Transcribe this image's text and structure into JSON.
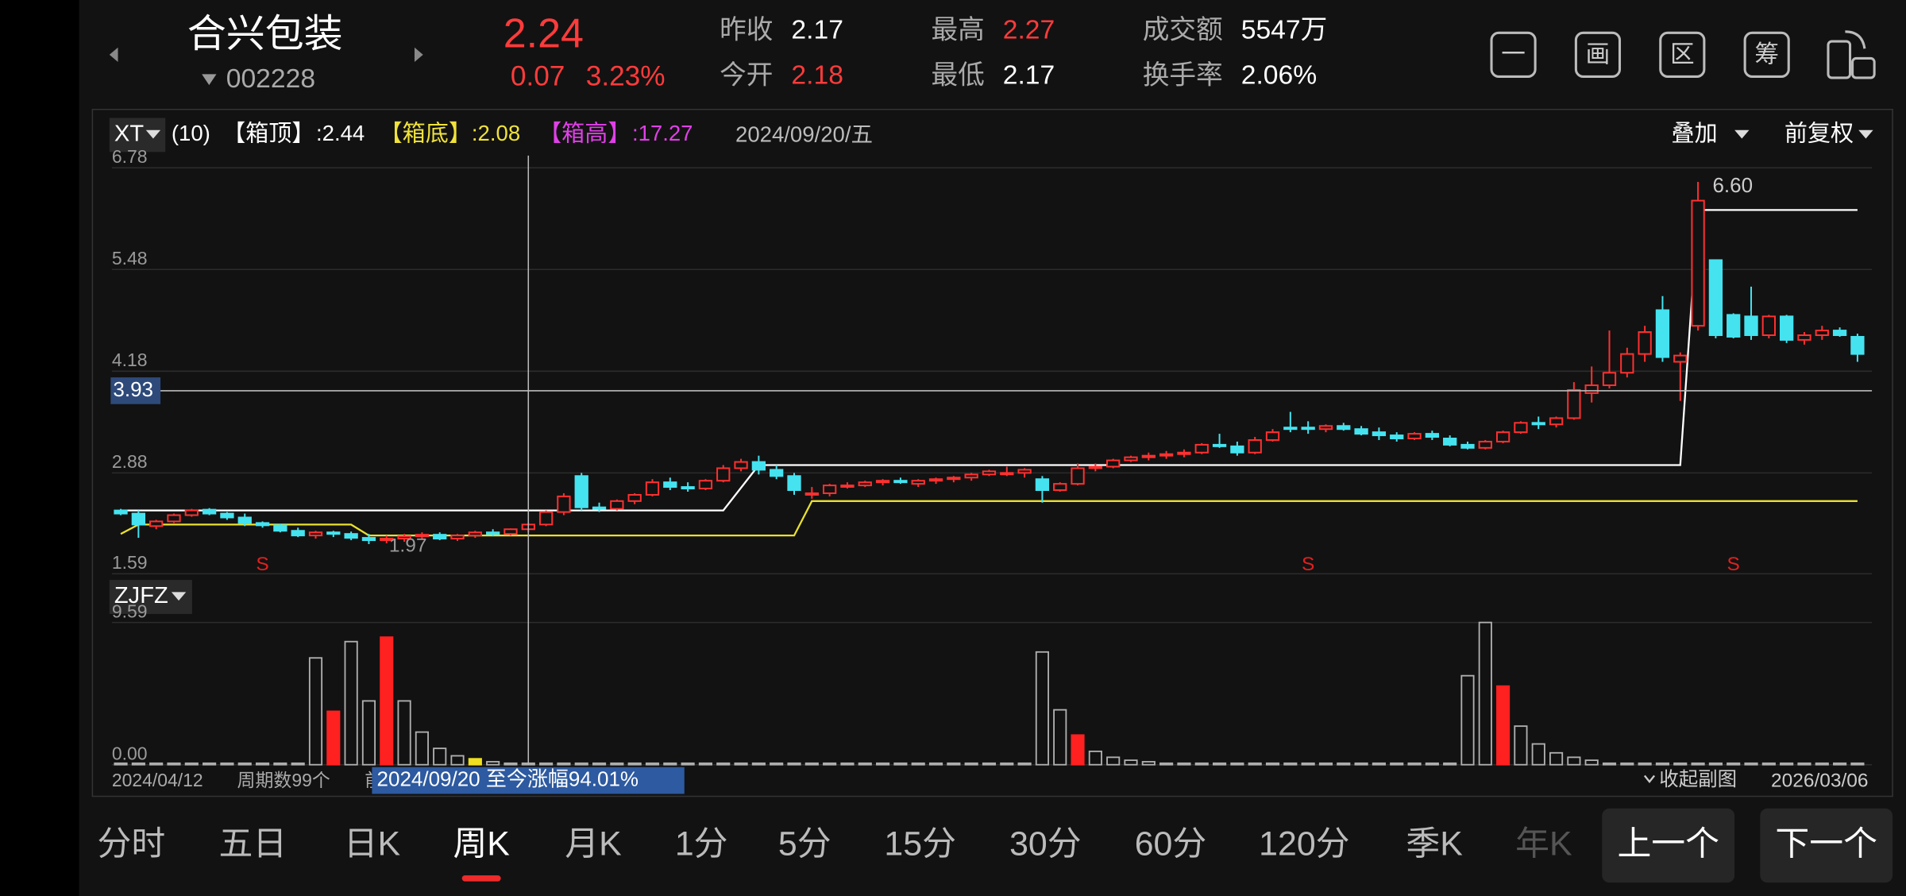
{
  "header": {
    "name": "合兴包装",
    "code": "002228",
    "price": "2.24",
    "change": "0.07",
    "change_pct": "3.23%",
    "stats": [
      {
        "label": "昨收",
        "value": "2.17",
        "color": "#ffffff"
      },
      {
        "label": "今开",
        "value": "2.18",
        "color": "#ff3b3b"
      },
      {
        "label": "最高",
        "value": "2.27",
        "color": "#ff3b3b"
      },
      {
        "label": "最低",
        "value": "2.17",
        "color": "#ffffff"
      },
      {
        "label": "成交额",
        "value": "5547万",
        "color": "#ffffff"
      },
      {
        "label": "换手率",
        "value": "2.06%",
        "color": "#ffffff"
      }
    ],
    "tools": [
      "一",
      "画",
      "区",
      "筹"
    ]
  },
  "indicator": {
    "name": "XT",
    "param": "(10)",
    "items": [
      {
        "label": "【箱顶】",
        "value": ":2.44",
        "color": "#ffffff"
      },
      {
        "label": "【箱底】",
        "value": ":2.08",
        "color": "#f0e23a"
      },
      {
        "label": "【箱高】",
        "value": ":17.27",
        "color": "#e040e8"
      }
    ],
    "date": "2024/09/20/五",
    "overlay": "叠加",
    "adjust": "前复权"
  },
  "chart_data": [
    {
      "type": "candlestick",
      "ylim": [
        1.59,
        6.78
      ],
      "yticks": [
        6.78,
        5.48,
        4.18,
        2.88,
        1.59
      ],
      "up_color": "#ff3030",
      "down_color": "#45e3f0",
      "candles": [
        [
          2.4,
          2.42,
          2.34,
          2.36
        ],
        [
          2.36,
          2.4,
          2.05,
          2.22
        ],
        [
          2.2,
          2.28,
          2.16,
          2.26
        ],
        [
          2.26,
          2.36,
          2.24,
          2.34
        ],
        [
          2.34,
          2.42,
          2.32,
          2.4
        ],
        [
          2.41,
          2.43,
          2.34,
          2.36
        ],
        [
          2.36,
          2.38,
          2.28,
          2.31
        ],
        [
          2.31,
          2.36,
          2.2,
          2.24
        ],
        [
          2.24,
          2.26,
          2.18,
          2.21
        ],
        [
          2.21,
          2.23,
          2.12,
          2.14
        ],
        [
          2.14,
          2.18,
          2.06,
          2.08
        ],
        [
          2.08,
          2.14,
          2.04,
          2.12
        ],
        [
          2.12,
          2.14,
          2.06,
          2.1
        ],
        [
          2.1,
          2.13,
          2.02,
          2.05
        ],
        [
          2.05,
          2.1,
          1.97,
          2.02
        ],
        [
          2.02,
          2.08,
          1.98,
          2.04
        ],
        [
          2.04,
          2.1,
          2.0,
          2.07
        ],
        [
          2.07,
          2.12,
          2.03,
          2.09
        ],
        [
          2.09,
          2.12,
          2.02,
          2.04
        ],
        [
          2.04,
          2.1,
          2.01,
          2.08
        ],
        [
          2.08,
          2.14,
          2.05,
          2.12
        ],
        [
          2.12,
          2.16,
          2.07,
          2.1
        ],
        [
          2.1,
          2.17,
          2.08,
          2.16
        ],
        [
          2.16,
          2.24,
          2.12,
          2.22
        ],
        [
          2.22,
          2.4,
          2.2,
          2.38
        ],
        [
          2.38,
          2.62,
          2.34,
          2.58
        ],
        [
          2.84,
          2.88,
          2.4,
          2.44
        ],
        [
          2.44,
          2.5,
          2.38,
          2.42
        ],
        [
          2.42,
          2.54,
          2.4,
          2.52
        ],
        [
          2.52,
          2.62,
          2.48,
          2.6
        ],
        [
          2.6,
          2.8,
          2.58,
          2.76
        ],
        [
          2.76,
          2.82,
          2.66,
          2.7
        ],
        [
          2.7,
          2.76,
          2.64,
          2.68
        ],
        [
          2.68,
          2.8,
          2.66,
          2.78
        ],
        [
          2.78,
          2.98,
          2.76,
          2.94
        ],
        [
          2.94,
          3.06,
          2.9,
          3.02
        ],
        [
          3.02,
          3.1,
          2.86,
          2.92
        ],
        [
          2.92,
          2.98,
          2.8,
          2.84
        ],
        [
          2.84,
          2.88,
          2.6,
          2.66
        ],
        [
          2.6,
          2.7,
          2.55,
          2.62
        ],
        [
          2.62,
          2.74,
          2.58,
          2.72
        ],
        [
          2.72,
          2.76,
          2.68,
          2.72
        ],
        [
          2.72,
          2.78,
          2.7,
          2.76
        ],
        [
          2.76,
          2.8,
          2.72,
          2.78
        ],
        [
          2.78,
          2.82,
          2.74,
          2.76
        ],
        [
          2.74,
          2.8,
          2.7,
          2.78
        ],
        [
          2.78,
          2.82,
          2.74,
          2.8
        ],
        [
          2.8,
          2.84,
          2.76,
          2.82
        ],
        [
          2.82,
          2.88,
          2.78,
          2.86
        ],
        [
          2.86,
          2.92,
          2.84,
          2.9
        ],
        [
          2.88,
          2.96,
          2.84,
          2.88
        ],
        [
          2.88,
          2.94,
          2.82,
          2.92
        ],
        [
          2.8,
          2.84,
          2.5,
          2.66
        ],
        [
          2.66,
          2.76,
          2.64,
          2.74
        ],
        [
          2.74,
          3.0,
          2.72,
          2.94
        ],
        [
          2.94,
          3.0,
          2.9,
          2.96
        ],
        [
          2.96,
          3.06,
          2.94,
          3.04
        ],
        [
          3.04,
          3.1,
          3.02,
          3.08
        ],
        [
          3.08,
          3.14,
          3.04,
          3.1
        ],
        [
          3.1,
          3.16,
          3.06,
          3.12
        ],
        [
          3.12,
          3.18,
          3.08,
          3.14
        ],
        [
          3.14,
          3.26,
          3.12,
          3.24
        ],
        [
          3.24,
          3.38,
          3.2,
          3.22
        ],
        [
          3.22,
          3.28,
          3.1,
          3.14
        ],
        [
          3.14,
          3.34,
          3.12,
          3.3
        ],
        [
          3.3,
          3.44,
          3.28,
          3.4
        ],
        [
          3.46,
          3.66,
          3.4,
          3.44
        ],
        [
          3.46,
          3.54,
          3.38,
          3.44
        ],
        [
          3.44,
          3.5,
          3.4,
          3.48
        ],
        [
          3.48,
          3.52,
          3.42,
          3.44
        ],
        [
          3.44,
          3.48,
          3.36,
          3.38
        ],
        [
          3.4,
          3.46,
          3.3,
          3.36
        ],
        [
          3.36,
          3.4,
          3.28,
          3.32
        ],
        [
          3.32,
          3.4,
          3.3,
          3.38
        ],
        [
          3.38,
          3.42,
          3.3,
          3.34
        ],
        [
          3.32,
          3.36,
          3.22,
          3.24
        ],
        [
          3.24,
          3.28,
          3.18,
          3.2
        ],
        [
          3.2,
          3.3,
          3.18,
          3.28
        ],
        [
          3.28,
          3.42,
          3.26,
          3.4
        ],
        [
          3.4,
          3.54,
          3.38,
          3.52
        ],
        [
          3.52,
          3.6,
          3.44,
          3.5
        ],
        [
          3.5,
          3.6,
          3.46,
          3.58
        ],
        [
          3.58,
          4.04,
          3.56,
          3.94
        ],
        [
          3.9,
          4.24,
          3.78,
          4.0
        ],
        [
          4.0,
          4.7,
          3.96,
          4.16
        ],
        [
          4.16,
          4.48,
          4.1,
          4.4
        ],
        [
          4.4,
          4.76,
          4.3,
          4.68
        ],
        [
          4.96,
          5.14,
          4.3,
          4.36
        ],
        [
          4.3,
          4.42,
          3.8,
          4.38
        ],
        [
          4.76,
          6.6,
          4.7,
          6.36
        ],
        [
          5.6,
          5.6,
          4.6,
          4.64
        ],
        [
          4.9,
          4.92,
          4.6,
          4.62
        ],
        [
          4.88,
          5.26,
          4.58,
          4.64
        ],
        [
          4.64,
          4.9,
          4.6,
          4.88
        ],
        [
          4.88,
          4.9,
          4.54,
          4.58
        ],
        [
          4.58,
          4.68,
          4.52,
          4.64
        ],
        [
          4.64,
          4.76,
          4.58,
          4.7
        ],
        [
          4.7,
          4.74,
          4.62,
          4.64
        ],
        [
          4.62,
          4.66,
          4.3,
          4.4
        ]
      ],
      "box_top": {
        "x": [
          0,
          34,
          36,
          88,
          89,
          98
        ],
        "values": [
          2.4,
          2.4,
          2.98,
          2.98,
          6.24,
          6.24
        ],
        "color": "#ffffff"
      },
      "box_bottom": {
        "x": [
          0,
          1,
          13,
          14,
          38,
          39,
          98
        ],
        "values": [
          2.1,
          2.22,
          2.22,
          2.08,
          2.08,
          2.52,
          2.52
        ],
        "color": "#e8e030"
      },
      "crosshair": {
        "index": 23,
        "value": 3.93
      },
      "low_label": {
        "index": 15,
        "value": 1.97
      },
      "high_label": {
        "index": 89,
        "value": {
          "value": 6.6,
          "label": "6.60"
        }
      },
      "signals": {
        "label": "S",
        "indices": [
          8,
          67,
          91
        ],
        "color": "#e02020"
      }
    },
    {
      "type": "bar",
      "title": "ZJFZ",
      "ylim": [
        0,
        9.59
      ],
      "yticks": [
        {
          "value": 0,
          "label": "0.00"
        },
        9.59
      ],
      "color": "#b0b0b0",
      "red": "#ff2020",
      "yellow": "#f0e020",
      "red_bars": [
        12,
        15,
        54,
        78
      ],
      "yellow_bars": [
        20
      ],
      "values": [
        0.1,
        0.1,
        0.1,
        0.1,
        0.1,
        0.1,
        0.1,
        0.1,
        0.1,
        0.1,
        0.1,
        7.2,
        3.6,
        8.3,
        4.3,
        8.6,
        4.3,
        2.2,
        1.1,
        0.6,
        0.4,
        0.2,
        0.1,
        0.1,
        0.1,
        0.1,
        0.1,
        0.1,
        0.1,
        0.1,
        0.1,
        0.1,
        0.1,
        0.1,
        0.1,
        0.1,
        0.1,
        0.1,
        0.1,
        0.1,
        0.1,
        0.1,
        0.1,
        0.1,
        0.1,
        0.1,
        0.1,
        0.1,
        0.1,
        0.1,
        0.1,
        0.1,
        7.6,
        3.7,
        2.0,
        0.9,
        0.5,
        0.3,
        0.2,
        0.1,
        0.1,
        0.1,
        0.1,
        0.1,
        0.1,
        0.1,
        0.1,
        0.1,
        0.1,
        0.1,
        0.1,
        0.1,
        0.1,
        0.1,
        0.1,
        0.1,
        6.0,
        9.59,
        5.3,
        2.6,
        1.4,
        0.8,
        0.5,
        0.3,
        0.1,
        0.1,
        0.1,
        0.1,
        0.1,
        0.1,
        0.1,
        0.1,
        0.1,
        0.1,
        0.1,
        0.1,
        0.1,
        0.1,
        0.1
      ]
    }
  ],
  "footer": {
    "start": "2024/04/12",
    "periods": "周期数99个",
    "prefix": "前",
    "range_note": "2024/09/20 至今涨幅94.01%",
    "collapse": "收起副图",
    "end": "2026/03/06"
  },
  "tabs": [
    "分时",
    "五日",
    "日K",
    "周K",
    "月K",
    "1分",
    "5分",
    "15分",
    "30分",
    "60分",
    "120分",
    "季K",
    "年K"
  ],
  "active_tab": 3,
  "dim_tab": 12,
  "buttons": [
    "上一个",
    "下一个"
  ]
}
